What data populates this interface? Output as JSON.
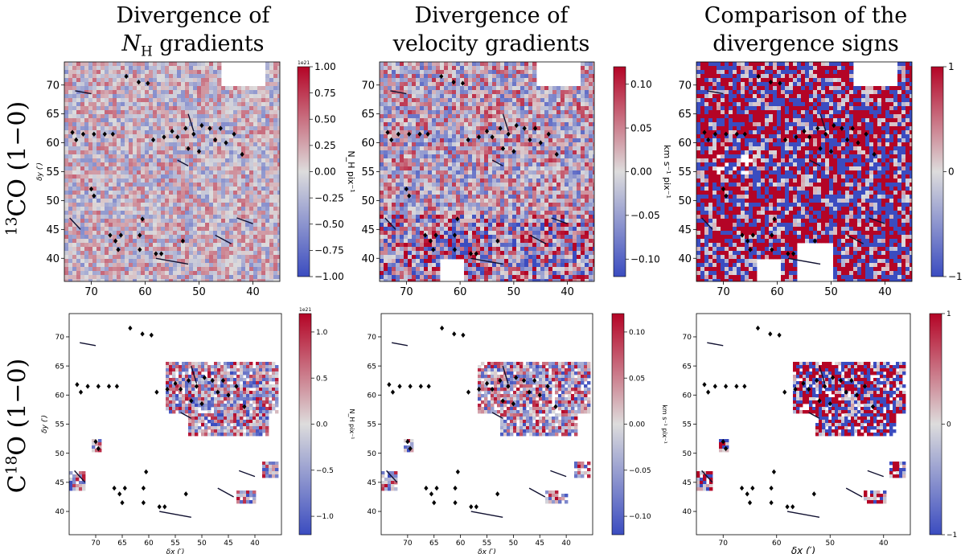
{
  "columns": [
    {
      "line1": "Divergence of",
      "line2_sym": "N",
      "line2_sub": "H",
      "line2_rest": " gradients"
    },
    {
      "line1": "Divergence of",
      "line2": "velocity gradients"
    },
    {
      "line1": "Comparison of the",
      "line2": "divergence signs"
    }
  ],
  "rows": [
    {
      "sup": "13",
      "rest": "CO (1−0)"
    },
    {
      "pre": "C",
      "sup": "18",
      "rest": "O (1−0)"
    }
  ],
  "axes": {
    "xlabel": "δx (′)",
    "ylabel": "δy (′)"
  },
  "colors": {
    "high": "#b40426",
    "mid": "#dddcdc",
    "low": "#3b4cc0",
    "marker": "#000000"
  },
  "chart_data": [
    {
      "type": "heatmap",
      "panel": "13CO divergence of NH gradients",
      "xlim": [
        75,
        35
      ],
      "ylim": [
        36,
        74
      ],
      "xticks": [
        70,
        60,
        50,
        40
      ],
      "yticks": [
        40,
        45,
        50,
        55,
        60,
        65,
        70
      ],
      "ylabel": "δy (′)",
      "colorbar": {
        "label": "N_H pix⁻¹",
        "exponent": "1e21",
        "min": -1.0,
        "max": 1.0,
        "ticks": [
          "1.00",
          "0.75",
          "0.50",
          "0.25",
          "0.00",
          "−0.25",
          "−0.50",
          "−0.75",
          "−1.00"
        ]
      }
    },
    {
      "type": "heatmap",
      "panel": "13CO divergence of velocity gradients",
      "xlim": [
        75,
        35
      ],
      "ylim": [
        36,
        74
      ],
      "xticks": [
        70,
        60,
        50,
        40
      ],
      "yticks": [
        40,
        45,
        50,
        55,
        60,
        65,
        70
      ],
      "colorbar": {
        "label": "km s⁻¹ pix⁻¹",
        "min": -0.12,
        "max": 0.12,
        "ticks": [
          "0.10",
          "0.05",
          "0.00",
          "−0.05",
          "−0.10"
        ]
      }
    },
    {
      "type": "heatmap",
      "panel": "13CO comparison of divergence signs",
      "xlim": [
        75,
        35
      ],
      "ylim": [
        36,
        74
      ],
      "xticks": [
        70,
        60,
        50,
        40
      ],
      "yticks": [
        40,
        45,
        50,
        55,
        60,
        65,
        70
      ],
      "colorbar": {
        "label": "",
        "min": -1,
        "max": 1,
        "ticks": [
          "1",
          "0",
          "−1"
        ]
      }
    },
    {
      "type": "heatmap",
      "panel": "C18O divergence of NH gradients",
      "xlim": [
        75,
        35
      ],
      "ylim": [
        36,
        74
      ],
      "xticks": [
        70,
        65,
        60,
        55,
        50,
        45,
        40
      ],
      "yticks": [
        40,
        45,
        50,
        55,
        60,
        65,
        70
      ],
      "xlabel": "δx (′)",
      "ylabel": "δy (′)",
      "colorbar": {
        "label": "N_H pix⁻¹",
        "exponent": "1e21",
        "min": -1.2,
        "max": 1.2,
        "ticks": [
          "1.0",
          "0.5",
          "0.0",
          "−0.5",
          "−1.0"
        ]
      }
    },
    {
      "type": "heatmap",
      "panel": "C18O divergence of velocity gradients",
      "xlim": [
        75,
        35
      ],
      "ylim": [
        36,
        74
      ],
      "xticks": [
        70,
        65,
        60,
        55,
        50,
        45,
        40
      ],
      "yticks": [
        40,
        45,
        50,
        55,
        60,
        65,
        70
      ],
      "xlabel": "δx (′)",
      "colorbar": {
        "label": "km s⁻¹ pix⁻¹",
        "min": -0.12,
        "max": 0.12,
        "ticks": [
          "0.10",
          "0.05",
          "0.00",
          "−0.05",
          "−0.10"
        ]
      }
    },
    {
      "type": "heatmap",
      "panel": "C18O comparison of divergence signs",
      "xlim": [
        75,
        35
      ],
      "ylim": [
        36,
        74
      ],
      "xticks": [
        70,
        60,
        50,
        40
      ],
      "yticks": [
        40,
        45,
        50,
        55,
        60,
        65,
        70
      ],
      "xlabel": "δx (′)",
      "colorbar": {
        "label": "",
        "min": -1,
        "max": 1,
        "ticks": [
          "1",
          "0",
          "−1"
        ]
      }
    }
  ],
  "markers": [
    [
      63.5,
      71.5
    ],
    [
      61.2,
      70.5
    ],
    [
      59.5,
      70.3
    ],
    [
      73.5,
      61.8
    ],
    [
      72.8,
      60.5
    ],
    [
      71.5,
      61.5
    ],
    [
      69.5,
      61.5
    ],
    [
      67.5,
      61.5
    ],
    [
      66,
      61.5
    ],
    [
      58.5,
      60.5
    ],
    [
      56.5,
      61.0
    ],
    [
      55.0,
      62.0
    ],
    [
      54.0,
      61.0
    ],
    [
      52.5,
      62.5
    ],
    [
      51.0,
      61.5
    ],
    [
      49.5,
      63.0
    ],
    [
      48.0,
      62.5
    ],
    [
      47.0,
      60.5
    ],
    [
      46.0,
      62.5
    ],
    [
      45.0,
      60.0
    ],
    [
      43.5,
      61.5
    ],
    [
      52.0,
      59.0
    ],
    [
      50.0,
      58.5
    ],
    [
      42.0,
      58.0
    ],
    [
      70.0,
      52.0
    ],
    [
      69.5,
      50.8
    ],
    [
      66.5,
      44.0
    ],
    [
      65.5,
      43.0
    ],
    [
      64.5,
      44.0
    ],
    [
      60.5,
      46.8
    ],
    [
      61.0,
      44.0
    ],
    [
      65.0,
      41.5
    ],
    [
      61.0,
      41.5
    ],
    [
      58.0,
      40.8
    ],
    [
      57.0,
      40.8
    ],
    [
      53.0,
      43.0
    ]
  ]
}
